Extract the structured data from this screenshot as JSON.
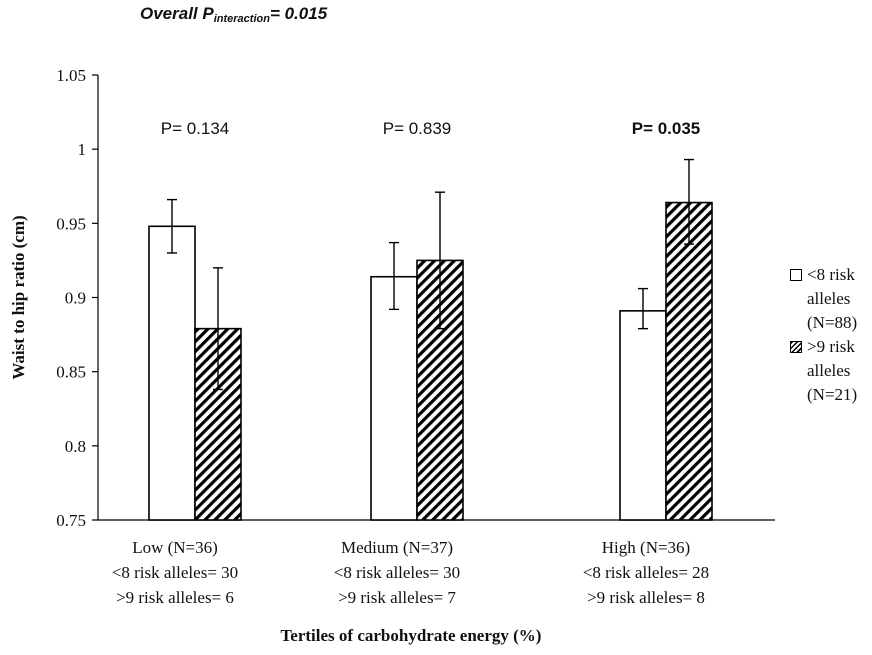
{
  "header": {
    "prefix": "Overall P",
    "subscript": "interaction",
    "suffix": "= 0.015"
  },
  "legend": [
    {
      "label": "<8 risk alleles (N=88)",
      "lines": [
        "<8 risk",
        "alleles",
        "(N=88)"
      ],
      "pattern": "white"
    },
    {
      "label": ">9 risk alleles (N=21)",
      "lines": [
        ">9 risk",
        "alleles",
        "(N=21)"
      ],
      "pattern": "hatched"
    }
  ],
  "chart_data": {
    "type": "bar",
    "title": "Overall Pinteraction= 0.015",
    "xlabel": "Tertiles of carbohydrate  energy (%)",
    "ylabel": "Waist to hip ratio (cm)",
    "ylim": [
      0.75,
      1.05
    ],
    "yticks": [
      "0.75",
      "0.8",
      "0.85",
      "0.9",
      "0.95",
      "1",
      "1.05"
    ],
    "grid": false,
    "legend_position": "right",
    "categories": [
      {
        "lines": [
          "Low (N=36)",
          "<8 risk alleles= 30",
          ">9 risk alleles= 6"
        ]
      },
      {
        "lines": [
          "Medium (N=37)",
          "<8 risk alleles= 30",
          ">9 risk alleles= 7"
        ]
      },
      {
        "lines": [
          "High (N=36)",
          "<8 risk alleles= 28",
          ">9 risk alleles= 8"
        ]
      }
    ],
    "p_values": [
      {
        "text": "P= 0.134",
        "bold": false
      },
      {
        "text": "P= 0.839",
        "bold": false
      },
      {
        "text": "P= 0.035",
        "bold": true
      }
    ],
    "series": [
      {
        "name": "<8 risk alleles (N=88)",
        "pattern": "white",
        "values": [
          0.948,
          0.914,
          0.891
        ],
        "err_low": [
          0.93,
          0.892,
          0.879
        ],
        "err_high": [
          0.966,
          0.937,
          0.906
        ]
      },
      {
        "name": ">9 risk alleles (N=21)",
        "pattern": "hatched",
        "values": [
          0.879,
          0.925,
          0.964
        ],
        "err_low": [
          0.838,
          0.879,
          0.936
        ],
        "err_high": [
          0.92,
          0.971,
          0.993
        ]
      }
    ]
  }
}
